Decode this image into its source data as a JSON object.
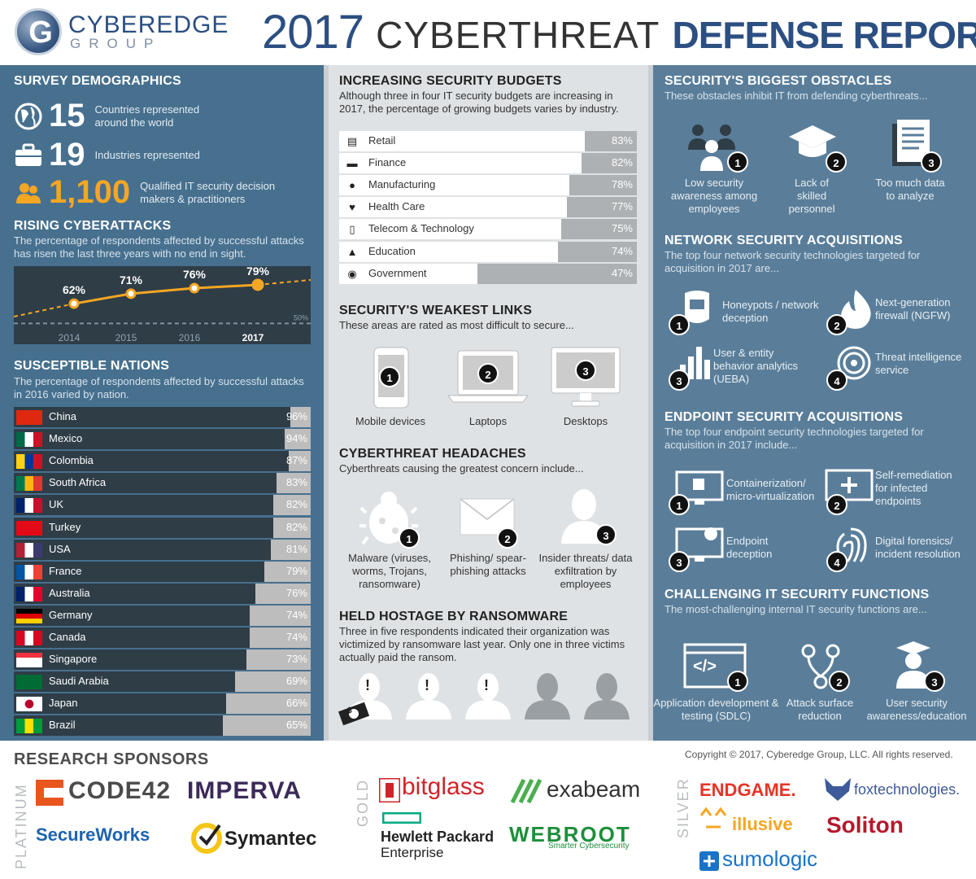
{
  "header": {
    "logo_main": "CYBEREDGE",
    "logo_sub": "GROUP",
    "title_year": "2017",
    "title_mid": "CYBERTHREAT",
    "title_bold": "DEFENSE REPORT"
  },
  "demographics": {
    "title": "SURVEY DEMOGRAPHICS",
    "rows": [
      {
        "icon": "globe-icon",
        "value": "15",
        "text": "Countries represented around the world"
      },
      {
        "icon": "briefcase-icon",
        "value": "19",
        "text": "Industries represented"
      },
      {
        "icon": "users-icon",
        "value": "1,100",
        "text": "Qualified IT security decision makers & practitioners"
      }
    ]
  },
  "rising": {
    "title": "RISING CYBERATTACKS",
    "subtitle": "The percentage of respondents affected by successful attacks has risen the last three years with no end in sight.",
    "chart_data": {
      "type": "line",
      "x": [
        "2014",
        "2015",
        "2016",
        "2017"
      ],
      "values": [
        62,
        71,
        76,
        79
      ],
      "labels": [
        "62%",
        "71%",
        "76%",
        "79%"
      ],
      "reference_label": "50%",
      "reference_value": 50,
      "ylim": [
        40,
        90
      ]
    }
  },
  "nations": {
    "title": "SUSCEPTIBLE NATIONS",
    "subtitle": "The percentage of respondents affected by successful attacks in 2016 varied by nation.",
    "chart_data": {
      "type": "bar",
      "categories": [
        "China",
        "Mexico",
        "Colombia",
        "South Africa",
        "UK",
        "Turkey",
        "USA",
        "France",
        "Australia",
        "Germany",
        "Canada",
        "Singapore",
        "Saudi Arabia",
        "Japan",
        "Brazil"
      ],
      "values": [
        96,
        94,
        87,
        83,
        82,
        82,
        81,
        79,
        76,
        74,
        74,
        73,
        69,
        66,
        65
      ],
      "labels": [
        "96%",
        "94%",
        "87%",
        "83%",
        "82%",
        "82%",
        "81%",
        "79%",
        "76%",
        "74%",
        "74%",
        "73%",
        "69%",
        "66%",
        "65%"
      ],
      "xlim": [
        0,
        100
      ]
    }
  },
  "budgets": {
    "title": "INCREASING SECURITY BUDGETS",
    "subtitle": "Although three in four IT security budgets are increasing in 2017, the percentage of growing budgets varies by industry.",
    "icons": [
      "retail-icon",
      "credit-card-icon",
      "bulb-icon",
      "heart-icon",
      "phone-icon",
      "graduation-cap-icon",
      "globe-icon"
    ],
    "chart_data": {
      "type": "bar",
      "categories": [
        "Retail",
        "Finance",
        "Manufacturing",
        "Health Care",
        "Telecom & Technology",
        "Education",
        "Government"
      ],
      "values": [
        83,
        82,
        78,
        77,
        75,
        74,
        47
      ],
      "labels": [
        "83%",
        "82%",
        "78%",
        "77%",
        "75%",
        "74%",
        "47%"
      ],
      "xlim": [
        0,
        100
      ]
    }
  },
  "weakest": {
    "title": "SECURITY'S WEAKEST LINKS",
    "subtitle": "These areas are rated as most difficult to secure...",
    "items": [
      {
        "num": "1",
        "label": "Mobile devices"
      },
      {
        "num": "2",
        "label": "Laptops"
      },
      {
        "num": "3",
        "label": "Desktops"
      }
    ]
  },
  "headaches": {
    "title": "CYBERTHREAT HEADACHES",
    "subtitle": "Cyberthreats causing the greatest concern include...",
    "items": [
      {
        "num": "1",
        "label": "Malware (viruses, worms, Trojans, ransomware)"
      },
      {
        "num": "2",
        "label": "Phishing/ spear-phishing attacks"
      },
      {
        "num": "3",
        "label": "Insider threats/ data exfiltration by employees"
      }
    ]
  },
  "ransom": {
    "title": "HELD HOSTAGE BY RANSOMWARE",
    "subtitle": "Three in five respondents indicated their organization was victimized by ransomware last year. Only one in three victims actually paid the ransom.",
    "mark": "!",
    "cash_sign": "$",
    "victims": 3,
    "total": 5
  },
  "obstacles": {
    "title": "SECURITY'S BIGGEST OBSTACLES",
    "subtitle": "These obstacles inhibit IT from defending cyberthreats...",
    "items": [
      {
        "num": "1",
        "label": "Low security awareness among employees"
      },
      {
        "num": "2",
        "label": "Lack of skilled personnel"
      },
      {
        "num": "3",
        "label": "Too much data to analyze"
      }
    ]
  },
  "network": {
    "title": "NETWORK SECURITY ACQUISITIONS",
    "subtitle": "The top four network security technologies targeted for acquisition in 2017 are...",
    "items": [
      {
        "num": "1",
        "label": "Honeypots / network deception"
      },
      {
        "num": "2",
        "label": "Next-generation firewall (NGFW)"
      },
      {
        "num": "3",
        "label": "User & entity behavior analytics (UEBA)"
      },
      {
        "num": "4",
        "label": "Threat intelligence service"
      }
    ]
  },
  "endpoint": {
    "title": "ENDPOINT SECURITY ACQUISITIONS",
    "subtitle": "The top four endpoint security technologies targeted for acquisition in 2017 include...",
    "items": [
      {
        "num": "1",
        "label": "Containerization/ micro-virtualization"
      },
      {
        "num": "2",
        "label": "Self-remediation for infected endpoints"
      },
      {
        "num": "3",
        "label": "Endpoint deception"
      },
      {
        "num": "4",
        "label": "Digital forensics/ incident resolution"
      }
    ]
  },
  "functions": {
    "title": "CHALLENGING IT SECURITY FUNCTIONS",
    "subtitle": "The most-challenging internal IT security functions are...",
    "code_glyph": "</>",
    "items": [
      {
        "num": "1",
        "label": "Application development & testing (SDLC)"
      },
      {
        "num": "2",
        "label": "Attack surface reduction"
      },
      {
        "num": "3",
        "label": "User security awareness/education"
      }
    ]
  },
  "sponsors": {
    "title": "RESEARCH SPONSORS",
    "copyright": "Copyright © 2017, Cyberedge Group, LLC. All rights reserved.",
    "tiers": {
      "platinum": "PLATINUM",
      "gold": "GOLD",
      "silver": "SILVER"
    },
    "platinum": [
      "CODE42",
      "IMPERVA",
      "SecureWorks",
      "Symantec"
    ],
    "gold": [
      "bitglass",
      "exabeam",
      "Hewlett Packard",
      "Enterprise",
      "WEBROOT",
      "Smarter Cybersecurity"
    ],
    "silver": [
      "ENDGAME.",
      "foxtechnologies.",
      "illusive",
      "Soliton",
      "sumologic"
    ]
  },
  "colors": {
    "left": "#47708f",
    "mid": "#dfe2e4",
    "right": "#5a7e9a",
    "accent": "#f5a623",
    "dark": "#2f3d47"
  }
}
